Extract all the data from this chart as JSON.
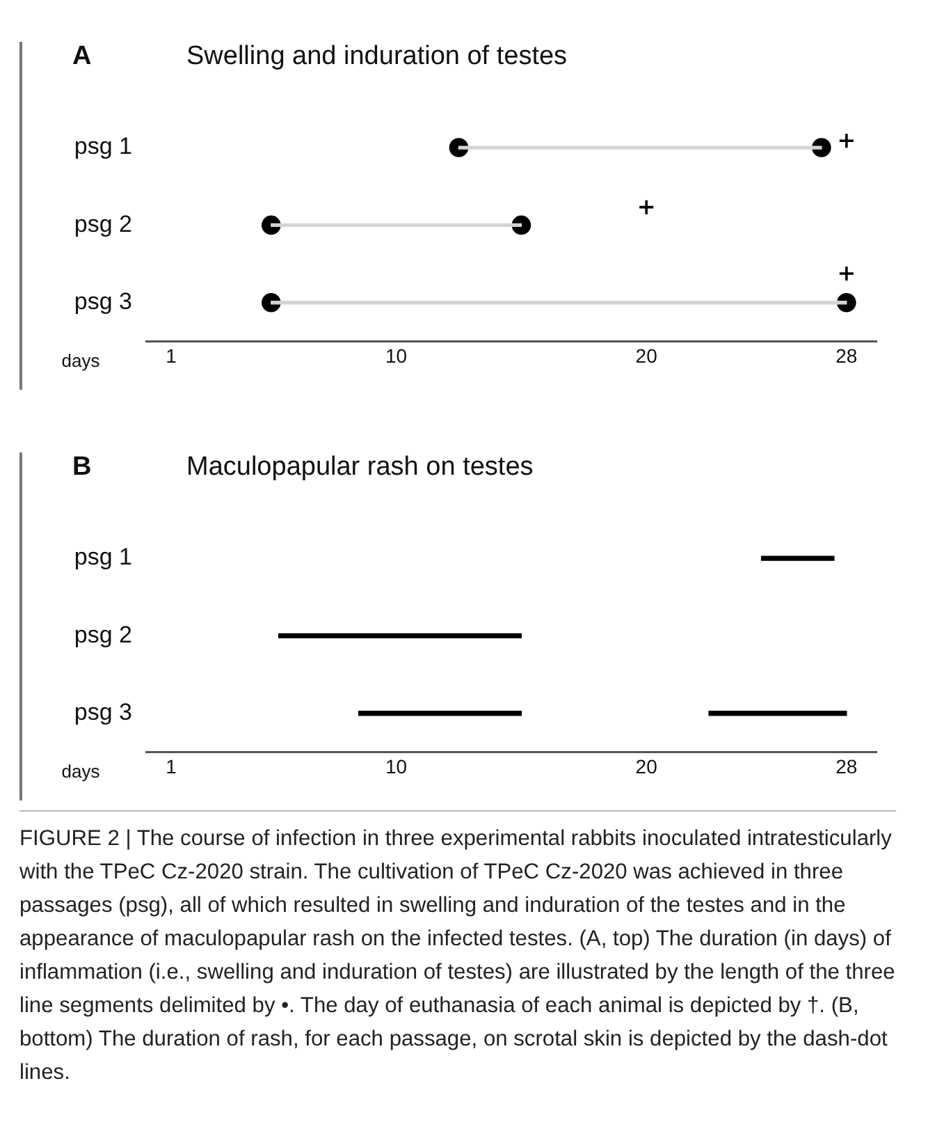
{
  "chart_data": [
    {
      "type": "bar",
      "orientation": "horizontal",
      "title": "A",
      "subtitle": "Swelling and induration of testes",
      "xlabel": "days",
      "categories": [
        "psg 1",
        "psg 2",
        "psg 3"
      ],
      "series": [
        {
          "color": "#d4d4d4",
          "base": [
            12.5,
            5,
            5
          ],
          "values": [
            14.5,
            10,
            23
          ]
        },
        {
          "type": "scatter",
          "marker": "circle",
          "color": "#000000",
          "x": [
            "psg 1",
            "psg 1",
            "psg 2",
            "psg 2",
            "psg 3",
            "psg 3"
          ],
          "values": [
            12.5,
            27,
            5,
            15,
            5,
            28
          ]
        },
        {
          "type": "scatter",
          "marker": "cross",
          "color": "#000000",
          "x": [
            "psg 1",
            "psg 2",
            "psg 3"
          ],
          "values": [
            28,
            20,
            28
          ]
        }
      ],
      "xlim": [
        0,
        29.2
      ],
      "xticks": [
        1,
        10,
        20,
        28
      ],
      "grid": false,
      "legend": false
    },
    {
      "type": "bar",
      "orientation": "horizontal",
      "title": "B",
      "subtitle": "Maculopapular rash on testes",
      "xlabel": "days",
      "categories": [
        "psg 1",
        "psg 2",
        "psg 3"
      ],
      "series": [
        {
          "color": "#000000",
          "base": [
            24.6,
            5.3,
            8.5
          ],
          "values": [
            2.9,
            9.7,
            6.5
          ]
        },
        {
          "color": "#000000",
          "base": [
            null,
            null,
            22.5
          ],
          "values": [
            null,
            null,
            5.5
          ]
        }
      ],
      "xlim": [
        0,
        29.2
      ],
      "xticks": [
        1,
        10,
        20,
        28
      ],
      "grid": false,
      "legend": false,
      "annotations": [
        "FIGURE 2 | The course of infection in three experimental rabbits inoculated intratesticularly with the TPeC Cz-2020 strain. The cultivation of TPeC Cz-2020 was achieved in three passages (psg), all of which resulted in swelling and induration of the testes and in the appearance of maculopapular rash on the infected testes. (A, top) The duration (in days) of inflammation (i.e., swelling and induration of testes) are illustrated by the length of the three line segments delimited by •. The day of euthanasia of each animal is depicted by †. (B, bottom) The duration of rash, for each passage, on scrotal skin is depicted by the dash-dot lines."
      ]
    }
  ]
}
